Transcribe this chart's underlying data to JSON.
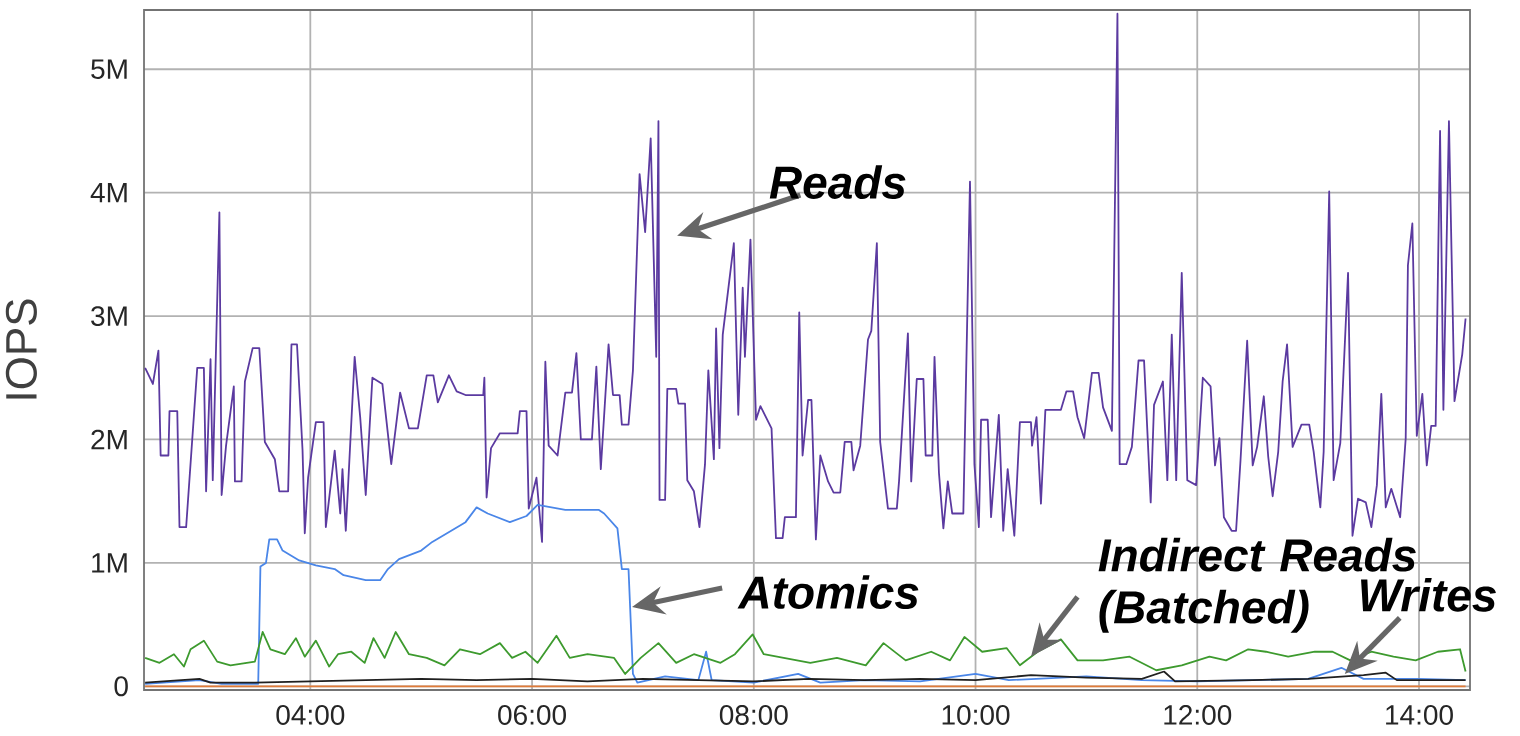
{
  "chart_data": {
    "type": "line",
    "ylabel": "IOPS",
    "xlim": [
      2.5,
      14.46
    ],
    "ylim": [
      -0.03,
      5.48
    ],
    "xticks": [
      {
        "value": 4,
        "label": "04:00"
      },
      {
        "value": 6,
        "label": "06:00"
      },
      {
        "value": 8,
        "label": "08:00"
      },
      {
        "value": 10,
        "label": "10:00"
      },
      {
        "value": 12,
        "label": "12:00"
      },
      {
        "value": 14,
        "label": "14:00"
      }
    ],
    "yticks": [
      0,
      {
        "value": 1,
        "label": "1M"
      },
      {
        "value": 2,
        "label": "2M"
      },
      {
        "value": 3,
        "label": "3M"
      },
      {
        "value": 4,
        "label": "4M"
      },
      {
        "value": 5,
        "label": "5M"
      }
    ],
    "grid": true,
    "series": [
      {
        "color": "#5b3aa0",
        "x": [
          2.51,
          2.58,
          2.63,
          2.65,
          2.72,
          2.73,
          2.8,
          2.82,
          2.88,
          2.98,
          3.04,
          3.06,
          3.1,
          3.12,
          3.18,
          3.2,
          3.24,
          3.31,
          3.32,
          3.38,
          3.41,
          3.48,
          3.54,
          3.59,
          3.68,
          3.72,
          3.8,
          3.83,
          3.88,
          3.93,
          3.95,
          3.98,
          4.05,
          4.12,
          4.14,
          4.22,
          4.27,
          4.29,
          4.32,
          4.4,
          4.45,
          4.5,
          4.56,
          4.65,
          4.73,
          4.81,
          4.89,
          4.97,
          5.0,
          5.05,
          5.11,
          5.15,
          5.25,
          5.32,
          5.4,
          5.56,
          5.57,
          5.59,
          5.63,
          5.71,
          5.87,
          5.89,
          5.95,
          5.97,
          6.04,
          6.09,
          6.12,
          6.15,
          6.23,
          6.3,
          6.36,
          6.4,
          6.44,
          6.54,
          6.58,
          6.62,
          6.69,
          6.73,
          6.79,
          6.81,
          6.87,
          6.91,
          6.97,
          7.02,
          7.07,
          7.12,
          7.14,
          7.15,
          7.2,
          7.22,
          7.3,
          7.32,
          7.38,
          7.4,
          7.46,
          7.51,
          7.56,
          7.59,
          7.64,
          7.66,
          7.69,
          7.72,
          7.82,
          7.86,
          7.9,
          7.92,
          7.97,
          8.02,
          8.06,
          8.16,
          8.2,
          8.26,
          8.28,
          8.38,
          8.41,
          8.44,
          8.49,
          8.52,
          8.56,
          8.6,
          8.67,
          8.72,
          8.78,
          8.82,
          8.88,
          8.9,
          8.96,
          9.03,
          9.06,
          9.11,
          9.14,
          9.21,
          9.29,
          9.31,
          9.39,
          9.42,
          9.47,
          9.53,
          9.55,
          9.61,
          9.63,
          9.67,
          9.71,
          9.75,
          9.79,
          9.89,
          9.95,
          9.99,
          10.03,
          10.05,
          10.11,
          10.14,
          10.21,
          10.25,
          10.29,
          10.35,
          10.4,
          10.5,
          10.51,
          10.55,
          10.59,
          10.63,
          10.77,
          10.82,
          10.88,
          10.92,
          10.98,
          11.05,
          11.11,
          11.15,
          11.23,
          11.28,
          11.3,
          11.36,
          11.41,
          11.47,
          11.52,
          11.58,
          11.61,
          11.69,
          11.73,
          11.77,
          11.81,
          11.86,
          11.91,
          11.99,
          12.05,
          12.12,
          12.16,
          12.2,
          12.24,
          12.31,
          12.35,
          12.39,
          12.45,
          12.5,
          12.54,
          12.6,
          12.64,
          12.68,
          12.73,
          12.77,
          12.81,
          12.86,
          12.94,
          13.01,
          13.05,
          13.11,
          13.14,
          13.19,
          13.23,
          13.29,
          13.36,
          13.4,
          13.45,
          13.52,
          13.57,
          13.62,
          13.66,
          13.7,
          13.75,
          13.83,
          13.88,
          13.9,
          13.94,
          13.98,
          14.03,
          14.07,
          14.11,
          14.15,
          14.19,
          14.22,
          14.27,
          14.32,
          14.39,
          14.42
        ],
        "values": [
          2.58,
          2.45,
          2.72,
          1.87,
          1.87,
          2.23,
          2.23,
          1.29,
          1.29,
          2.58,
          2.58,
          1.58,
          2.65,
          1.67,
          3.84,
          1.55,
          1.95,
          2.43,
          1.66,
          1.66,
          2.47,
          2.74,
          2.74,
          1.98,
          1.84,
          1.58,
          1.58,
          2.77,
          2.77,
          1.91,
          1.24,
          1.69,
          2.14,
          2.14,
          1.29,
          1.91,
          1.4,
          1.76,
          1.26,
          2.67,
          2.18,
          1.55,
          2.5,
          2.45,
          1.8,
          2.38,
          2.09,
          2.09,
          2.25,
          2.52,
          2.52,
          2.3,
          2.52,
          2.39,
          2.36,
          2.36,
          2.5,
          1.53,
          1.93,
          2.05,
          2.05,
          2.23,
          2.23,
          1.44,
          1.69,
          1.17,
          2.63,
          1.95,
          1.87,
          2.38,
          2.38,
          2.7,
          2.0,
          2.0,
          2.59,
          1.76,
          2.77,
          2.36,
          2.36,
          2.12,
          2.12,
          2.56,
          4.15,
          3.68,
          4.44,
          2.67,
          4.58,
          1.51,
          1.51,
          2.41,
          2.41,
          2.29,
          2.29,
          1.67,
          1.58,
          1.29,
          1.8,
          2.56,
          1.84,
          2.9,
          1.93,
          2.85,
          3.59,
          2.2,
          3.23,
          2.67,
          3.62,
          2.16,
          2.27,
          2.09,
          1.2,
          1.2,
          1.37,
          1.37,
          3.03,
          1.87,
          2.32,
          2.32,
          1.19,
          1.87,
          1.66,
          1.57,
          1.57,
          1.98,
          1.98,
          1.75,
          1.95,
          2.81,
          2.88,
          3.59,
          1.98,
          1.44,
          1.44,
          1.66,
          2.86,
          1.66,
          2.49,
          2.49,
          1.87,
          1.87,
          2.67,
          1.73,
          1.28,
          1.66,
          1.4,
          1.4,
          4.09,
          1.8,
          1.29,
          2.16,
          2.16,
          1.37,
          2.2,
          1.26,
          1.76,
          1.22,
          2.14,
          2.14,
          1.95,
          2.18,
          1.48,
          2.24,
          2.24,
          2.39,
          2.39,
          2.18,
          2.01,
          2.54,
          2.54,
          2.26,
          2.07,
          5.45,
          1.8,
          1.8,
          1.94,
          2.64,
          2.64,
          1.49,
          2.28,
          2.47,
          1.67,
          2.85,
          1.67,
          3.35,
          1.67,
          1.63,
          2.5,
          2.43,
          1.79,
          2.01,
          1.37,
          1.26,
          1.26,
          1.83,
          2.8,
          1.79,
          1.94,
          2.35,
          1.86,
          1.54,
          1.9,
          2.47,
          2.77,
          1.94,
          2.12,
          2.12,
          1.9,
          1.45,
          1.9,
          4.01,
          1.67,
          1.97,
          3.35,
          1.22,
          1.52,
          1.49,
          1.29,
          1.63,
          2.37,
          1.45,
          1.6,
          1.37,
          2.01,
          3.41,
          3.75,
          2.03,
          2.37,
          1.79,
          2.11,
          2.11,
          4.5,
          2.24,
          4.58,
          2.31,
          2.69,
          2.98
        ]
      },
      {
        "color": "#4a86e8",
        "x": [
          2.51,
          3.0,
          3.2,
          3.53,
          3.55,
          3.6,
          3.63,
          3.7,
          3.75,
          3.9,
          4.05,
          4.22,
          4.3,
          4.5,
          4.63,
          4.7,
          4.8,
          5.0,
          5.1,
          5.25,
          5.4,
          5.5,
          5.6,
          5.8,
          5.95,
          6.05,
          6.3,
          6.6,
          6.65,
          6.77,
          6.81,
          6.87,
          6.91,
          6.95,
          7.2,
          7.5,
          7.57,
          7.62,
          8.0,
          8.4,
          8.6,
          9.0,
          9.5,
          10.0,
          10.3,
          11.0,
          11.5,
          12.0,
          12.5,
          13.0,
          13.3,
          13.5,
          14.0,
          14.42
        ],
        "values": [
          0.02,
          0.05,
          0.02,
          0.02,
          0.97,
          1.0,
          1.19,
          1.19,
          1.1,
          1.02,
          0.98,
          0.95,
          0.9,
          0.86,
          0.86,
          0.95,
          1.03,
          1.1,
          1.17,
          1.25,
          1.33,
          1.45,
          1.4,
          1.33,
          1.38,
          1.47,
          1.43,
          1.43,
          1.4,
          1.28,
          0.95,
          0.95,
          0.1,
          0.03,
          0.08,
          0.05,
          0.28,
          0.05,
          0.03,
          0.1,
          0.03,
          0.05,
          0.04,
          0.1,
          0.05,
          0.08,
          0.05,
          0.04,
          0.05,
          0.06,
          0.15,
          0.06,
          0.06,
          0.05
        ]
      },
      {
        "color": "#3d9a2e",
        "x": [
          2.51,
          2.64,
          2.77,
          2.86,
          2.92,
          3.04,
          3.16,
          3.28,
          3.5,
          3.57,
          3.64,
          3.77,
          3.87,
          3.95,
          4.05,
          4.17,
          4.25,
          4.37,
          4.49,
          4.57,
          4.67,
          4.77,
          4.89,
          5.05,
          5.21,
          5.35,
          5.53,
          5.71,
          5.82,
          5.94,
          6.05,
          6.22,
          6.34,
          6.5,
          6.74,
          6.84,
          6.98,
          7.14,
          7.3,
          7.46,
          7.7,
          7.83,
          7.99,
          8.09,
          8.27,
          8.51,
          8.75,
          9.01,
          9.17,
          9.37,
          9.6,
          9.77,
          9.9,
          10.06,
          10.28,
          10.4,
          10.56,
          10.77,
          10.92,
          11.15,
          11.39,
          11.63,
          11.86,
          12.11,
          12.26,
          12.46,
          12.62,
          12.82,
          13.06,
          13.22,
          13.38,
          13.57,
          13.77,
          13.97,
          14.17,
          14.37,
          14.42
        ],
        "values": [
          0.23,
          0.19,
          0.26,
          0.16,
          0.3,
          0.37,
          0.2,
          0.17,
          0.2,
          0.44,
          0.3,
          0.26,
          0.39,
          0.24,
          0.37,
          0.16,
          0.26,
          0.28,
          0.19,
          0.39,
          0.23,
          0.44,
          0.26,
          0.23,
          0.17,
          0.3,
          0.26,
          0.35,
          0.23,
          0.28,
          0.19,
          0.41,
          0.23,
          0.26,
          0.23,
          0.1,
          0.23,
          0.35,
          0.19,
          0.26,
          0.19,
          0.26,
          0.42,
          0.26,
          0.23,
          0.19,
          0.23,
          0.17,
          0.35,
          0.21,
          0.28,
          0.21,
          0.4,
          0.28,
          0.31,
          0.17,
          0.28,
          0.38,
          0.21,
          0.21,
          0.24,
          0.13,
          0.17,
          0.24,
          0.21,
          0.3,
          0.28,
          0.24,
          0.28,
          0.28,
          0.21,
          0.28,
          0.24,
          0.21,
          0.28,
          0.3,
          0.12
        ]
      },
      {
        "color": "#202020",
        "x": [
          2.51,
          3.0,
          3.1,
          3.5,
          4.0,
          4.5,
          5.0,
          5.5,
          6.0,
          6.5,
          7.0,
          7.5,
          8.0,
          8.5,
          9.0,
          9.5,
          10.0,
          10.5,
          11.0,
          11.5,
          11.7,
          11.8,
          12.5,
          13.0,
          13.5,
          13.7,
          13.8,
          14.42
        ],
        "values": [
          0.03,
          0.06,
          0.03,
          0.03,
          0.04,
          0.05,
          0.06,
          0.05,
          0.06,
          0.04,
          0.06,
          0.05,
          0.04,
          0.06,
          0.05,
          0.06,
          0.05,
          0.09,
          0.07,
          0.06,
          0.12,
          0.04,
          0.05,
          0.06,
          0.09,
          0.11,
          0.05,
          0.05
        ]
      },
      {
        "color": "#e07b39",
        "x": [
          2.51,
          14.42
        ],
        "values": [
          0,
          0
        ]
      }
    ],
    "annotations": [
      "Reads",
      "Atomics",
      {
        "text": "Indirect Reads (Batched)",
        "x": 10.5,
        "y": 0.24
      },
      {
        "text": "Writes",
        "x": 13.33,
        "y": 0.1
      }
    ]
  }
}
